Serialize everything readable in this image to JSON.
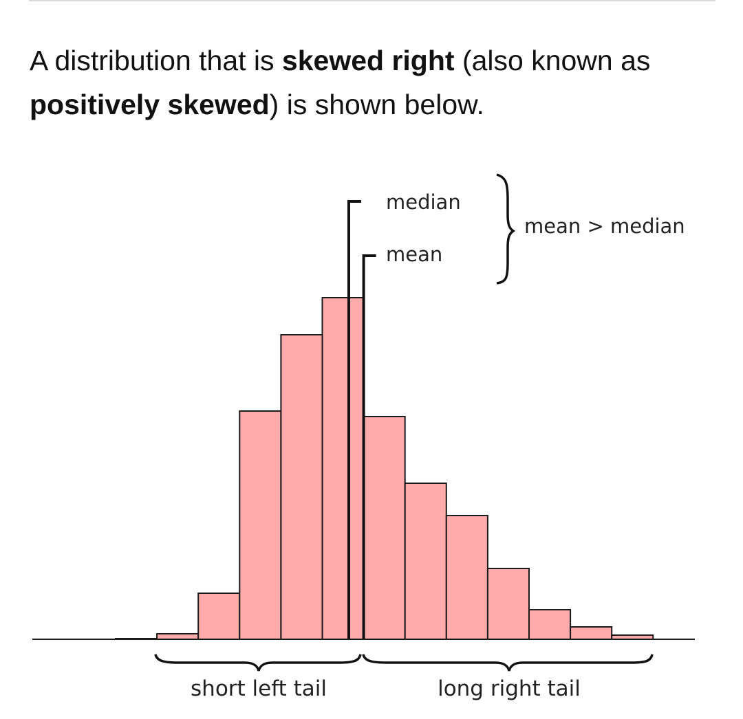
{
  "intro": {
    "part1": "A distribution that is ",
    "bold1": "skewed right",
    "part2": " (also known as ",
    "bold2": "positively skewed",
    "part3": ") is shown below."
  },
  "chart_data": {
    "type": "bar",
    "title": "",
    "xlabel": "",
    "ylabel": "",
    "bins": 13,
    "values": [
      0.1,
      0.8,
      6.7,
      33.2,
      44.3,
      49.7,
      32.4,
      22.7,
      18.0,
      10.3,
      4.3,
      1.8,
      0.6
    ],
    "ylim": [
      0,
      50
    ],
    "bar_color": "#ffabab",
    "edge_color": "#1a1a1a",
    "median_bin_position": 5.64,
    "mean_bin_position": 6.0,
    "annotations": {
      "median": "median",
      "mean": "mean",
      "relation": "mean > median",
      "left_tail": "short left tail",
      "right_tail": "long right tail"
    },
    "grid": false,
    "legend": "none"
  }
}
